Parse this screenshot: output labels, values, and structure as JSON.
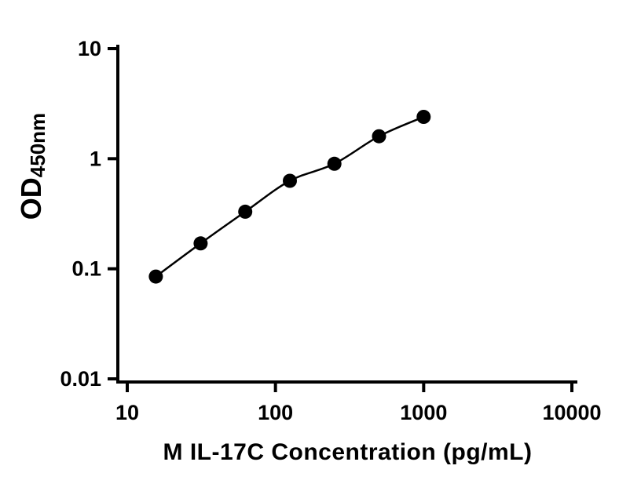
{
  "chart_data": {
    "type": "scatter",
    "title": "",
    "xlabel": "M IL-17C Concentration (pg/mL)",
    "ylabel": "OD450nm",
    "ylabel_main": "OD",
    "ylabel_sub": "450nm",
    "x_scale": "log",
    "y_scale": "log",
    "xlim": [
      10,
      10000
    ],
    "ylim": [
      0.01,
      10
    ],
    "x_ticks": [
      10,
      100,
      1000,
      10000
    ],
    "x_tick_labels": [
      "10",
      "100",
      "1000",
      "10000"
    ],
    "y_ticks": [
      10,
      1,
      0.1,
      0.01
    ],
    "y_tick_labels": [
      "10",
      "1",
      "0.1",
      "0.01"
    ],
    "grid": false,
    "legend": false,
    "curve_fit": true,
    "series": [
      {
        "marker": "circle",
        "points": [
          {
            "x": 15.6,
            "y": 0.085
          },
          {
            "x": 31.25,
            "y": 0.17
          },
          {
            "x": 62.5,
            "y": 0.33
          },
          {
            "x": 125,
            "y": 0.63
          },
          {
            "x": 250,
            "y": 0.9
          },
          {
            "x": 500,
            "y": 1.6
          },
          {
            "x": 1000,
            "y": 2.4
          }
        ]
      }
    ],
    "colors": {
      "axis": "#000000",
      "curve": "#000000",
      "marker": "#000000",
      "background": "#ffffff",
      "text": "#000000"
    }
  }
}
